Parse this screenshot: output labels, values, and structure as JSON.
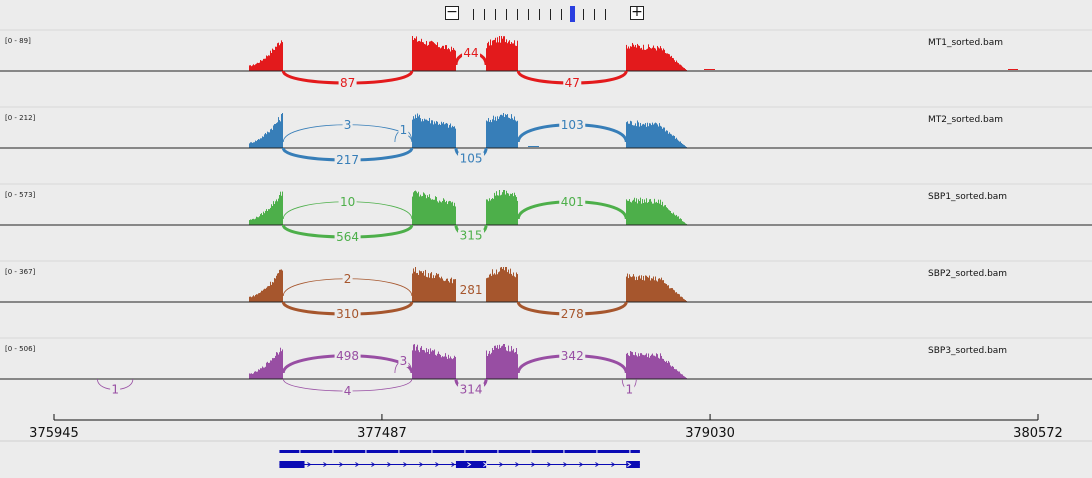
{
  "zoom": {
    "minus_label": "−",
    "plus_label": "+",
    "levels": 13,
    "current_level": 9
  },
  "ruler": {
    "ticks": [
      "375945",
      "377487",
      "379030",
      "380572"
    ]
  },
  "colors": {
    "MT1_sorted.bam": "#e31a1c",
    "MT2_sorted.bam": "#377eb8",
    "SBP1_sorted.bam": "#4daf4a",
    "SBP2_sorted.bam": "#a6562d",
    "SBP3_sorted.bam": "#984ea3",
    "gene": "#0a0ab4"
  },
  "tracks": [
    {
      "name": "MT1_sorted.bam",
      "range": "[0 - 89]",
      "junctions": [
        {
          "label": "87",
          "side": "below",
          "from": 377023,
          "to": 377628,
          "weight": "thick"
        },
        {
          "label": "44",
          "side": "above",
          "from": 377835,
          "to": 377977,
          "weight": "thick"
        },
        {
          "label": "47",
          "side": "below",
          "from": 378128,
          "to": 378636,
          "weight": "thick"
        }
      ]
    },
    {
      "name": "MT2_sorted.bam",
      "range": "[0 - 212]",
      "junctions": [
        {
          "label": "3",
          "side": "above",
          "from": 377023,
          "to": 377628,
          "weight": "thin"
        },
        {
          "label": "1",
          "side": "above",
          "from": 377548,
          "to": 377628,
          "weight": "thin"
        },
        {
          "label": "217",
          "side": "below",
          "from": 377023,
          "to": 377628,
          "weight": "thick"
        },
        {
          "label": "105",
          "side": "below",
          "from": 377835,
          "to": 377977,
          "weight": "thick"
        },
        {
          "label": "103",
          "side": "above",
          "from": 378128,
          "to": 378636,
          "weight": "thick"
        }
      ]
    },
    {
      "name": "SBP1_sorted.bam",
      "range": "[0 - 573]",
      "junctions": [
        {
          "label": "10",
          "side": "above",
          "from": 377023,
          "to": 377628,
          "weight": "thin"
        },
        {
          "label": "564",
          "side": "below",
          "from": 377023,
          "to": 377628,
          "weight": "thick"
        },
        {
          "label": "315",
          "side": "below",
          "from": 377835,
          "to": 377977,
          "weight": "thick"
        },
        {
          "label": "401",
          "side": "above",
          "from": 378128,
          "to": 378636,
          "weight": "thick"
        }
      ]
    },
    {
      "name": "SBP2_sorted.bam",
      "range": "[0 - 367]",
      "junctions": [
        {
          "label": "2",
          "side": "above",
          "from": 377023,
          "to": 377628,
          "weight": "thin"
        },
        {
          "label": "310",
          "side": "below",
          "from": 377023,
          "to": 377628,
          "weight": "thick"
        },
        {
          "label": "281",
          "side": "none",
          "from": 377835,
          "to": 377977,
          "weight": "thick"
        },
        {
          "label": "278",
          "side": "below",
          "from": 378128,
          "to": 378636,
          "weight": "thick"
        }
      ]
    },
    {
      "name": "SBP3_sorted.bam",
      "range": "[0 - 506]",
      "junctions": [
        {
          "label": "1",
          "side": "below",
          "from": 376149,
          "to": 376316,
          "weight": "thin"
        },
        {
          "label": "498",
          "side": "above",
          "from": 377023,
          "to": 377628,
          "weight": "thick"
        },
        {
          "label": "3",
          "side": "above",
          "from": 377548,
          "to": 377628,
          "weight": "thin"
        },
        {
          "label": "4",
          "side": "below",
          "from": 377023,
          "to": 377628,
          "weight": "thin"
        },
        {
          "label": "314",
          "side": "below",
          "from": 377835,
          "to": 377977,
          "weight": "thick"
        },
        {
          "label": "342",
          "side": "above",
          "from": 378128,
          "to": 378636,
          "weight": "thick"
        },
        {
          "label": "1",
          "side": "below",
          "from": 378617,
          "to": 378683,
          "weight": "thin"
        }
      ]
    }
  ]
}
